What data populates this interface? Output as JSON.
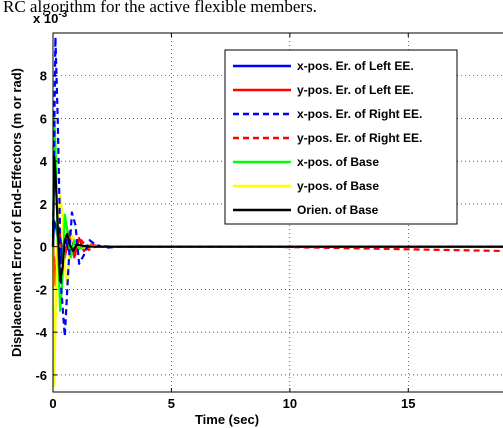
{
  "caption_text": "RC algorithm for the active flexible members.",
  "chart_data": {
    "type": "line",
    "xlabel": "Time (sec)",
    "ylabel": "Displacement Error of End-Effectors (m or rad)",
    "y_multiplier": "x 10",
    "y_exponent": "-3",
    "xlim": [
      0,
      19
    ],
    "ylim": [
      -6.8,
      10
    ],
    "x_ticks": [
      0,
      5,
      10,
      15
    ],
    "y_ticks": [
      -6,
      -4,
      -2,
      0,
      2,
      4,
      6,
      8
    ],
    "x_tick_labels": [
      "0",
      "5",
      "10",
      "15"
    ],
    "y_tick_labels": [
      "-6",
      "-4",
      "-2",
      "0",
      "2",
      "4",
      "6",
      "8"
    ],
    "grid": true,
    "legend_position": "top-right",
    "series": [
      {
        "name": "x-pos. Er. of Left EE.",
        "color": "#0000ff",
        "dash": "solid",
        "x": [
          0,
          0.05,
          0.15,
          0.3,
          0.5,
          0.7,
          0.9,
          1.1,
          1.4,
          1.8,
          2.5,
          19
        ],
        "y": [
          0,
          1.2,
          0.8,
          -0.8,
          0.5,
          -0.3,
          0.2,
          -0.1,
          0.05,
          0,
          0,
          0
        ]
      },
      {
        "name": "y-pos. Er. of Left EE.",
        "color": "#ff0000",
        "dash": "solid",
        "x": [
          0,
          0.1,
          0.25,
          0.45,
          0.7,
          0.9,
          1.1,
          1.3,
          1.6,
          2.0,
          2.6,
          19
        ],
        "y": [
          0,
          -1.8,
          0.9,
          -0.8,
          0.7,
          -0.5,
          0.4,
          -0.2,
          0.1,
          0,
          0,
          0
        ]
      },
      {
        "name": "x-pos. Er. of Right EE.",
        "color": "#0000ff",
        "dash": "dash",
        "x": [
          0,
          0.1,
          0.2,
          0.35,
          0.5,
          0.65,
          0.8,
          0.95,
          1.1,
          1.3,
          1.55,
          1.8,
          2.2,
          2.8,
          19
        ],
        "y": [
          0,
          9.8,
          6.0,
          -2.0,
          -4.2,
          -1.0,
          1.6,
          1.0,
          -0.8,
          -0.4,
          0.3,
          0.1,
          -0.05,
          0,
          0
        ]
      },
      {
        "name": "y-pos. Er. of Right EE.",
        "color": "#ff0000",
        "dash": "dash",
        "x": [
          0,
          0.1,
          0.25,
          0.45,
          0.7,
          0.95,
          1.2,
          1.5,
          1.9,
          2.5,
          9.0,
          19
        ],
        "y": [
          0,
          -1.5,
          0.8,
          -0.6,
          0.5,
          -0.4,
          0.3,
          -0.15,
          0.05,
          0,
          0,
          -0.2
        ]
      },
      {
        "name": "x-pos. of Base",
        "color": "#00ff00",
        "dash": "solid",
        "x": [
          0,
          0.05,
          0.1,
          0.2,
          0.3,
          0.4,
          0.5,
          0.6,
          0.75,
          0.9,
          1.1,
          1.4,
          1.8,
          19
        ],
        "y": [
          0,
          6.2,
          4.8,
          0.5,
          -3.0,
          -1.5,
          1.5,
          0.8,
          -0.5,
          0.3,
          -0.1,
          0.05,
          0,
          0
        ]
      },
      {
        "name": "y-pos. of Base",
        "color": "#ffff00",
        "dash": "solid",
        "x": [
          0,
          0.05,
          0.12,
          0.2,
          0.3,
          0.4,
          0.5,
          0.6,
          0.7,
          0.8,
          0.95,
          1.15,
          1.5,
          2.0,
          19
        ],
        "y": [
          0,
          -6.5,
          -3.0,
          1.0,
          2.4,
          1.5,
          -1.0,
          -1.8,
          -0.3,
          0.5,
          0.2,
          -0.1,
          0.05,
          0,
          0
        ]
      },
      {
        "name": "Orien. of Base",
        "color": "#000000",
        "dash": "solid",
        "x": [
          0,
          0.05,
          0.1,
          0.2,
          0.3,
          0.4,
          0.5,
          0.6,
          0.7,
          0.85,
          1.0,
          1.2,
          1.5,
          2.0,
          19
        ],
        "y": [
          0,
          4.2,
          3.5,
          1.0,
          -1.6,
          -1.0,
          0.3,
          0.6,
          0.1,
          -0.2,
          0.1,
          0.05,
          0,
          0,
          0
        ]
      }
    ]
  }
}
